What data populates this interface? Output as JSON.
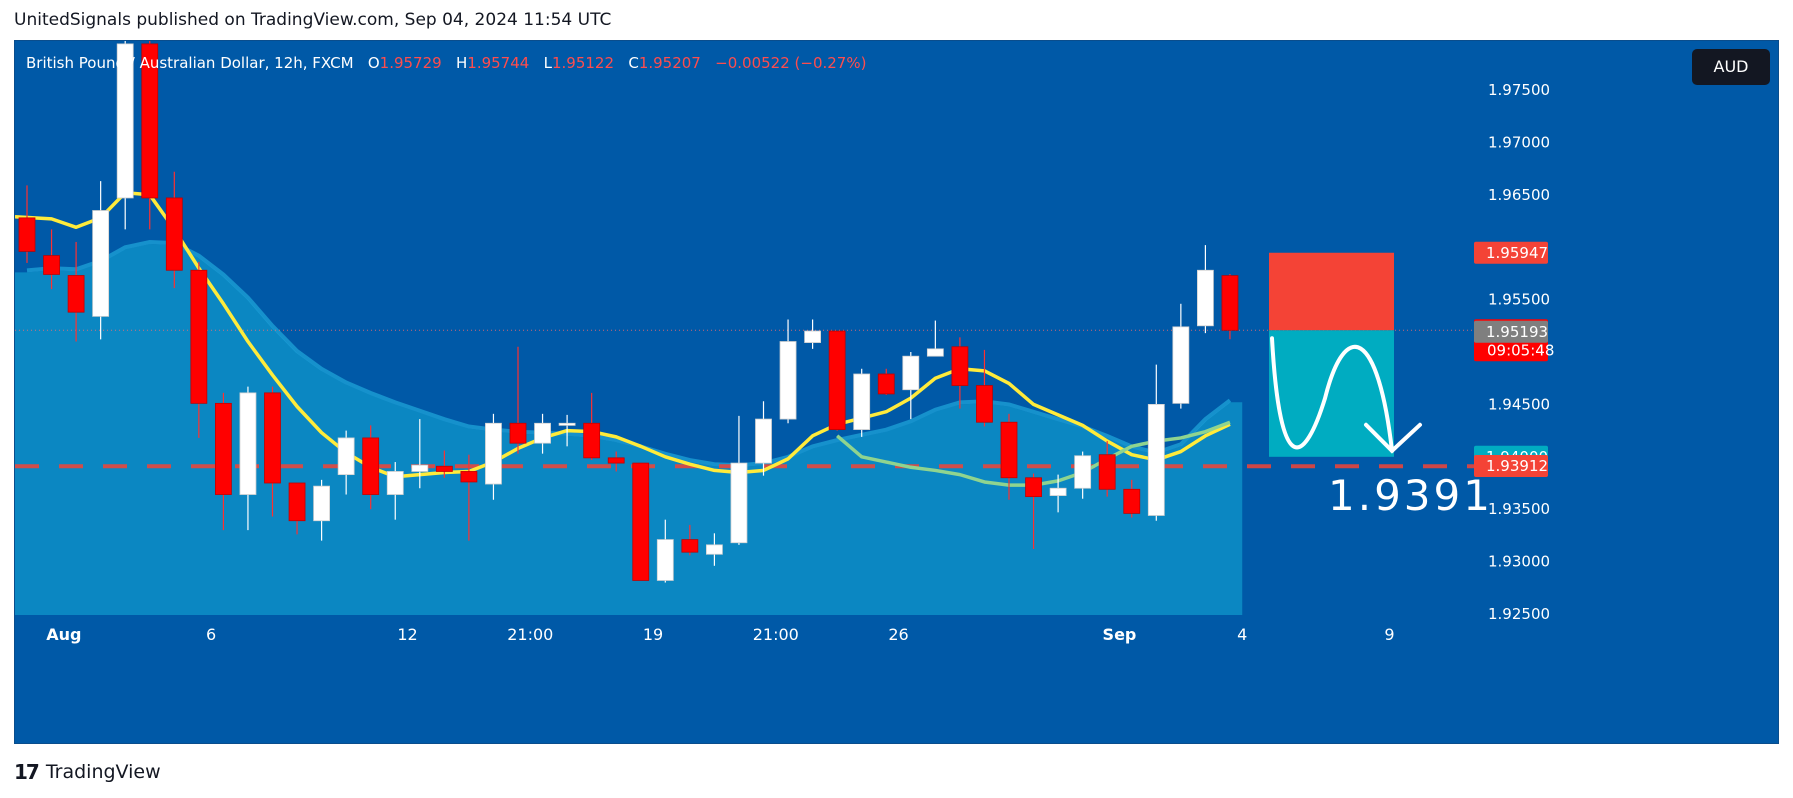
{
  "header": {
    "publish_line": "UnitedSignals published on TradingView.com, Sep 04, 2024 11:54 UTC"
  },
  "legend": {
    "symbol": "British Pound / Australian Dollar, 12h, FXCM",
    "o_label": "O",
    "o_value": "1.95729",
    "h_label": "H",
    "h_value": "1.95744",
    "l_label": "L",
    "l_value": "1.95122",
    "c_label": "C",
    "c_value": "1.95207",
    "change": "−0.00522 (−0.27%)"
  },
  "axis_unit": "AUD",
  "footer": {
    "brand": "TradingView",
    "logo": "17"
  },
  "colors": {
    "background": "#0059a7",
    "bull": "#ffffff",
    "bear": "#ff0000",
    "ma_fast": "#ffeb3b",
    "ma_slow": "#8fd48f",
    "area": "#0b87c2",
    "stop_zone": "#f44336",
    "target_zone": "#00acc1"
  },
  "chart_data": {
    "type": "candlestick",
    "title": "British Pound / Australian Dollar, 12h, FXCM",
    "ylim": [
      1.9246,
      1.9802
    ],
    "y_ticks": [
      "1.97500",
      "1.97000",
      "1.96500",
      "1.95500",
      "1.94500",
      "1.93500",
      "1.93000",
      "1.92500"
    ],
    "x_ticks": [
      {
        "label": "Aug",
        "bar": 1.5,
        "bold": true
      },
      {
        "label": "6",
        "bar": 7.5
      },
      {
        "label": "12",
        "bar": 15.5
      },
      {
        "label": "21:00",
        "bar": 20.5
      },
      {
        "label": "19",
        "bar": 25.5
      },
      {
        "label": "21:00",
        "bar": 30.5
      },
      {
        "label": "26",
        "bar": 35.5
      },
      {
        "label": "Sep",
        "bar": 44.5,
        "bold": true
      },
      {
        "label": "4",
        "bar": 49.5
      },
      {
        "label": "9",
        "bar": 55.5
      }
    ],
    "candles": [
      {
        "o": 1.9628,
        "h": 1.9659,
        "l": 1.9585,
        "c": 1.9596
      },
      {
        "o": 1.9592,
        "h": 1.9617,
        "l": 1.956,
        "c": 1.9574
      },
      {
        "o": 1.9573,
        "h": 1.9605,
        "l": 1.951,
        "c": 1.9538
      },
      {
        "o": 1.9534,
        "h": 1.9663,
        "l": 1.9512,
        "c": 1.9635
      },
      {
        "o": 1.9647,
        "h": 1.9812,
        "l": 1.9617,
        "c": 1.9794
      },
      {
        "o": 1.9794,
        "h": 1.9812,
        "l": 1.9617,
        "c": 1.9647
      },
      {
        "o": 1.9647,
        "h": 1.9672,
        "l": 1.9561,
        "c": 1.9578
      },
      {
        "o": 1.9578,
        "h": 1.9586,
        "l": 1.9418,
        "c": 1.9451
      },
      {
        "o": 1.9451,
        "h": 1.9461,
        "l": 1.933,
        "c": 1.9364
      },
      {
        "o": 1.9364,
        "h": 1.9467,
        "l": 1.933,
        "c": 1.9461
      },
      {
        "o": 1.9461,
        "h": 1.9467,
        "l": 1.9343,
        "c": 1.9375
      },
      {
        "o": 1.9375,
        "h": 1.9375,
        "l": 1.9326,
        "c": 1.9339
      },
      {
        "o": 1.9339,
        "h": 1.9378,
        "l": 1.932,
        "c": 1.9372
      },
      {
        "o": 1.9383,
        "h": 1.9425,
        "l": 1.9364,
        "c": 1.9418
      },
      {
        "o": 1.9418,
        "h": 1.943,
        "l": 1.935,
        "c": 1.9364
      },
      {
        "o": 1.9364,
        "h": 1.9395,
        "l": 1.934,
        "c": 1.9386
      },
      {
        "o": 1.9386,
        "h": 1.9436,
        "l": 1.937,
        "c": 1.9392
      },
      {
        "o": 1.9391,
        "h": 1.9406,
        "l": 1.938,
        "c": 1.9386
      },
      {
        "o": 1.9386,
        "h": 1.9402,
        "l": 1.932,
        "c": 1.9376
      },
      {
        "o": 1.9374,
        "h": 1.9441,
        "l": 1.9359,
        "c": 1.9432
      },
      {
        "o": 1.9432,
        "h": 1.9505,
        "l": 1.9403,
        "c": 1.9413
      },
      {
        "o": 1.9413,
        "h": 1.9441,
        "l": 1.9403,
        "c": 1.9432
      },
      {
        "o": 1.943,
        "h": 1.944,
        "l": 1.941,
        "c": 1.9432
      },
      {
        "o": 1.9432,
        "h": 1.9461,
        "l": 1.9397,
        "c": 1.9399
      },
      {
        "o": 1.9399,
        "h": 1.9405,
        "l": 1.9386,
        "c": 1.9394
      },
      {
        "o": 1.9394,
        "h": 1.9394,
        "l": 1.9283,
        "c": 1.9282
      },
      {
        "o": 1.9282,
        "h": 1.934,
        "l": 1.928,
        "c": 1.9321
      },
      {
        "o": 1.9321,
        "h": 1.9335,
        "l": 1.9306,
        "c": 1.9309
      },
      {
        "o": 1.9307,
        "h": 1.9327,
        "l": 1.9296,
        "c": 1.9316
      },
      {
        "o": 1.9318,
        "h": 1.9439,
        "l": 1.9316,
        "c": 1.9394
      },
      {
        "o": 1.9394,
        "h": 1.9453,
        "l": 1.9382,
        "c": 1.9436
      },
      {
        "o": 1.9436,
        "h": 1.9531,
        "l": 1.9432,
        "c": 1.951
      },
      {
        "o": 1.9509,
        "h": 1.9531,
        "l": 1.9503,
        "c": 1.952
      },
      {
        "o": 1.952,
        "h": 1.952,
        "l": 1.9425,
        "c": 1.9426
      },
      {
        "o": 1.9426,
        "h": 1.9484,
        "l": 1.9419,
        "c": 1.9479
      },
      {
        "o": 1.9479,
        "h": 1.9484,
        "l": 1.9459,
        "c": 1.946
      },
      {
        "o": 1.9464,
        "h": 1.95,
        "l": 1.9436,
        "c": 1.9496
      },
      {
        "o": 1.9496,
        "h": 1.953,
        "l": 1.9496,
        "c": 1.9503
      },
      {
        "o": 1.9505,
        "h": 1.9514,
        "l": 1.9446,
        "c": 1.9468
      },
      {
        "o": 1.9468,
        "h": 1.9502,
        "l": 1.9429,
        "c": 1.9433
      },
      {
        "o": 1.9433,
        "h": 1.9441,
        "l": 1.9359,
        "c": 1.938
      },
      {
        "o": 1.938,
        "h": 1.9384,
        "l": 1.9312,
        "c": 1.9362
      },
      {
        "o": 1.9363,
        "h": 1.9383,
        "l": 1.9347,
        "c": 1.937
      },
      {
        "o": 1.937,
        "h": 1.9405,
        "l": 1.936,
        "c": 1.9401
      },
      {
        "o": 1.9402,
        "h": 1.9415,
        "l": 1.9362,
        "c": 1.9369
      },
      {
        "o": 1.9369,
        "h": 1.9378,
        "l": 1.9342,
        "c": 1.9346
      },
      {
        "o": 1.9344,
        "h": 1.9488,
        "l": 1.9339,
        "c": 1.945
      },
      {
        "o": 1.9451,
        "h": 1.9546,
        "l": 1.9446,
        "c": 1.9524
      },
      {
        "o": 1.9525,
        "h": 1.9602,
        "l": 1.9518,
        "c": 1.9578
      },
      {
        "o": 1.95729,
        "h": 1.95744,
        "l": 1.95122,
        "c": 1.95207
      }
    ],
    "ma_fast": [
      1.9629,
      1.9627,
      1.9619,
      1.9628,
      1.9652,
      1.965,
      1.9617,
      1.958,
      1.9546,
      1.951,
      1.9478,
      1.9448,
      1.9423,
      1.9404,
      1.939,
      1.9381,
      1.9383,
      1.9385,
      1.9386,
      1.9395,
      1.9408,
      1.9418,
      1.9425,
      1.9424,
      1.9419,
      1.941,
      1.94,
      1.9393,
      1.9387,
      1.9385,
      1.9387,
      1.9398,
      1.942,
      1.9431,
      1.9437,
      1.9443,
      1.9456,
      1.9475,
      1.9484,
      1.9482,
      1.947,
      1.945,
      1.944,
      1.943,
      1.9415,
      1.9402,
      1.9397,
      1.9405,
      1.942,
      1.9431
    ],
    "ma_slow": [
      1.942,
      1.94,
      1.9395,
      1.939,
      1.9387,
      1.9383,
      1.9376,
      1.9373,
      1.9373,
      1.9377,
      1.9385,
      1.9398,
      1.941,
      1.9415,
      1.9418,
      1.9424,
      1.9433
    ],
    "ma_slow_start": 33,
    "area_top": [
      1.9576,
      1.9578,
      1.9577,
      1.9585,
      1.9598,
      1.9603,
      1.9602,
      1.959,
      1.9572,
      1.955,
      1.9523,
      1.9499,
      1.9482,
      1.9469,
      1.9459,
      1.945,
      1.9442,
      1.9434,
      1.9427,
      1.9424,
      1.9422,
      1.9421,
      1.942,
      1.9418,
      1.9414,
      1.9408,
      1.9401,
      1.9395,
      1.9391,
      1.939,
      1.9392,
      1.9398,
      1.9408,
      1.9414,
      1.9419,
      1.9424,
      1.9432,
      1.9443,
      1.945,
      1.9451,
      1.9448,
      1.9441,
      1.9434,
      1.9427,
      1.9418,
      1.9408,
      1.9402,
      1.941,
      1.9434,
      1.9452
    ],
    "current_line": 1.95207,
    "entry_line": 1.9391,
    "trade": {
      "stop": 1.95947,
      "entry": 1.95207,
      "target": 1.94,
      "target_annotation": "1.9391"
    },
    "price_labels": [
      {
        "text": "1.95947",
        "value": 1.95947,
        "color": "#f44336"
      },
      {
        "text": "1.95207",
        "sub": "09:05:48",
        "value": 1.95207,
        "color": "#ff0000"
      },
      {
        "text": "1.95193",
        "value": 1.95193,
        "color": "#7f7f7f"
      },
      {
        "text": "1.94000",
        "value": 1.94,
        "color": "#00acc1"
      },
      {
        "text": "1.93912",
        "value": 1.93912,
        "color": "#f44336"
      }
    ]
  }
}
